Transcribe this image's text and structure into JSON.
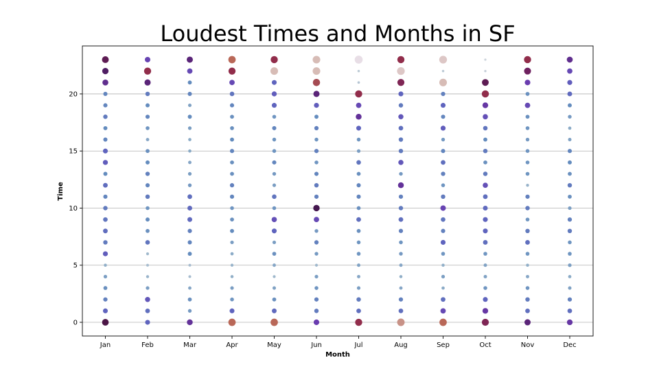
{
  "chart_data": {
    "type": "scatter",
    "title": "Loudest Times and Months in SF",
    "xlabel": "Month",
    "ylabel": "Time",
    "categories": [
      "Jan",
      "Feb",
      "Mar",
      "Apr",
      "May",
      "Jun",
      "Jul",
      "Aug",
      "Sep",
      "Oct",
      "Nov",
      "Dec"
    ],
    "x_tick_labels": [
      "Jan",
      "Feb",
      "Mar",
      "Apr",
      "May",
      "Jun",
      "Jul",
      "Aug",
      "Sep",
      "Oct",
      "Nov",
      "Dec"
    ],
    "y_ticks": [
      0,
      5,
      10,
      15,
      20
    ],
    "y_tick_labels": [
      "0",
      "5",
      "10",
      "15",
      "20"
    ],
    "ylim": [
      -1.2,
      24.2
    ],
    "grid": "horizontal",
    "legend": "none",
    "hours": [
      0,
      1,
      2,
      3,
      4,
      5,
      6,
      7,
      8,
      9,
      10,
      11,
      12,
      13,
      14,
      15,
      16,
      17,
      18,
      19,
      20,
      21,
      22,
      23
    ],
    "intensity": [
      [
        0.78,
        0.48,
        0.38,
        0.32,
        0.26,
        0.18,
        0.5,
        0.4,
        0.45,
        0.42,
        0.4,
        0.36,
        0.45,
        0.34,
        0.5,
        0.48,
        0.36,
        0.34,
        0.4,
        0.36,
        0.36,
        0.66,
        0.72,
        0.8
      ],
      [
        0.48,
        0.44,
        0.52,
        0.26,
        0.16,
        0.12,
        0.14,
        0.42,
        0.32,
        0.34,
        0.3,
        0.4,
        0.36,
        0.38,
        0.34,
        0.32,
        0.22,
        0.3,
        0.36,
        0.34,
        0.4,
        0.7,
        0.86,
        0.58
      ],
      [
        0.64,
        0.28,
        0.32,
        0.22,
        0.12,
        0.12,
        0.34,
        0.36,
        0.38,
        0.46,
        0.46,
        0.44,
        0.28,
        0.26,
        0.22,
        0.2,
        0.2,
        0.26,
        0.34,
        0.24,
        0.36,
        0.34,
        0.56,
        0.7
      ],
      [
        0.9,
        0.48,
        0.3,
        0.26,
        0.18,
        0.16,
        0.2,
        0.26,
        0.34,
        0.32,
        0.3,
        0.36,
        0.38,
        0.32,
        0.32,
        0.36,
        0.34,
        0.32,
        0.32,
        0.36,
        0.42,
        0.56,
        0.86,
        0.9
      ],
      [
        0.9,
        0.46,
        0.32,
        0.24,
        0.14,
        0.22,
        0.32,
        0.26,
        0.48,
        0.54,
        0.3,
        0.42,
        0.26,
        0.28,
        0.36,
        0.3,
        0.3,
        0.36,
        0.3,
        0.48,
        0.5,
        0.48,
        0.94,
        0.86
      ],
      [
        0.6,
        0.4,
        0.38,
        0.3,
        0.26,
        0.14,
        0.28,
        0.38,
        0.28,
        0.56,
        0.74,
        0.38,
        0.4,
        0.36,
        0.3,
        0.38,
        0.3,
        0.38,
        0.34,
        0.5,
        0.7,
        0.88,
        0.94,
        0.94
      ],
      [
        0.86,
        0.44,
        0.4,
        0.26,
        0.22,
        0.24,
        0.3,
        0.3,
        0.32,
        0.44,
        0.32,
        0.36,
        0.36,
        0.32,
        0.42,
        0.26,
        0.3,
        0.48,
        0.64,
        0.56,
        0.86,
        0.08,
        0.06,
        1.0
      ],
      [
        0.92,
        0.44,
        0.38,
        0.22,
        0.18,
        0.22,
        0.28,
        0.3,
        0.38,
        0.44,
        0.4,
        0.38,
        0.64,
        0.28,
        0.52,
        0.4,
        0.4,
        0.44,
        0.52,
        0.4,
        0.48,
        0.84,
        0.96,
        0.86
      ],
      [
        0.9,
        0.56,
        0.44,
        0.2,
        0.26,
        0.18,
        0.3,
        0.48,
        0.38,
        0.42,
        0.58,
        0.4,
        0.3,
        0.38,
        0.44,
        0.36,
        0.28,
        0.5,
        0.36,
        0.48,
        0.38,
        0.94,
        0.06,
        0.96
      ],
      [
        0.84,
        0.62,
        0.48,
        0.3,
        0.24,
        0.24,
        0.3,
        0.44,
        0.48,
        0.48,
        0.46,
        0.44,
        0.54,
        0.4,
        0.32,
        0.4,
        0.34,
        0.42,
        0.54,
        0.62,
        0.86,
        0.8,
        0.04,
        0.02
      ],
      [
        0.7,
        0.44,
        0.4,
        0.3,
        0.22,
        0.18,
        0.3,
        0.44,
        0.4,
        0.3,
        0.4,
        0.38,
        0.16,
        0.3,
        0.3,
        0.3,
        0.28,
        0.3,
        0.32,
        0.56,
        0.32,
        0.6,
        0.82,
        0.86
      ],
      [
        0.62,
        0.44,
        0.38,
        0.24,
        0.2,
        0.26,
        0.3,
        0.3,
        0.4,
        0.38,
        0.26,
        0.32,
        0.4,
        0.32,
        0.34,
        0.36,
        0.24,
        0.2,
        0.28,
        0.34,
        0.46,
        0.5,
        0.56,
        0.66
      ]
    ]
  }
}
